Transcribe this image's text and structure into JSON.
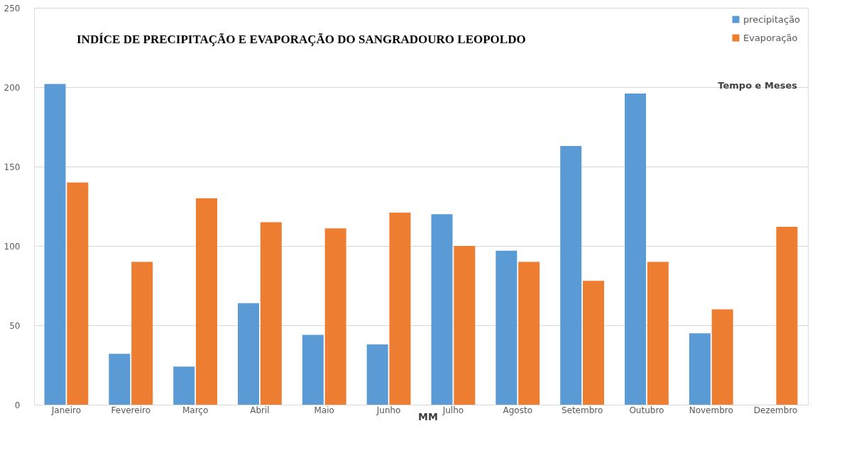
{
  "chart_data": {
    "type": "bar",
    "title": "INDÍCE DE PRECIPITAÇÃO E EVAPORAÇÃO DO SANGRADOURO LEOPOLDO",
    "categories": [
      "Janeiro",
      "Fevereiro",
      "Março",
      "Abril",
      "Maio",
      "Junho",
      "Julho",
      "Agosto",
      "Setembro",
      "Outubro",
      "Novembro",
      "Dezembro"
    ],
    "series": [
      {
        "name": "precipitação",
        "color": "#5b9bd5",
        "values": [
          202,
          32,
          24,
          64,
          44,
          38,
          120,
          97,
          163,
          196,
          45,
          null
        ]
      },
      {
        "name": "Evaporação",
        "color": "#ed7d31",
        "values": [
          140,
          90,
          130,
          115,
          111,
          121,
          100,
          90,
          78,
          90,
          60,
          112
        ]
      }
    ],
    "ylim": [
      0,
      250
    ],
    "yticks": [
      0,
      50,
      100,
      150,
      200,
      250
    ],
    "grid": "y",
    "legend": "top right",
    "annotations": [
      "Tempo e Meses",
      "MM"
    ]
  }
}
